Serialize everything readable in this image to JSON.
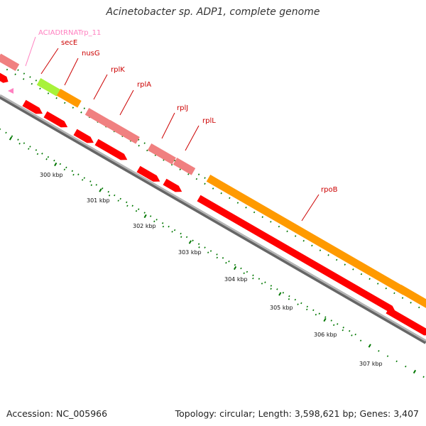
{
  "title": "Acinetobacter sp. ADP1, complete genome",
  "footer": {
    "accession": "Accession: NC_005966",
    "topology": "Topology: circular; Length: 3,598,621 bp; Genes: 3,407"
  },
  "ruler": {
    "unit": "kbp",
    "ticks": [
      "300 kbp",
      "301 kbp",
      "302 kbp",
      "303 kbp",
      "304 kbp",
      "305 kbp",
      "306 kbp",
      "307 kbp"
    ]
  },
  "genes": [
    {
      "name": "ACIADtRNATrp_11",
      "type": "tRNA"
    },
    {
      "name": "secE",
      "type": "CDS"
    },
    {
      "name": "nusG",
      "type": "CDS"
    },
    {
      "name": "rplK",
      "type": "CDS"
    },
    {
      "name": "rplA",
      "type": "CDS"
    },
    {
      "name": "rplJ",
      "type": "CDS"
    },
    {
      "name": "rplL",
      "type": "CDS"
    },
    {
      "name": "rpoB",
      "type": "CDS"
    }
  ],
  "colors": {
    "cds_feature": "#ff0000",
    "cds_feature_shadow": "#b00000",
    "orange_gene": "#ff9a00",
    "pink_gene": "#f08080",
    "trna_gene": "#a8f23a",
    "trna_label": "#ff80c0",
    "gene_label": "#cc0000",
    "backbone": "#999999",
    "tick": "#007700"
  }
}
